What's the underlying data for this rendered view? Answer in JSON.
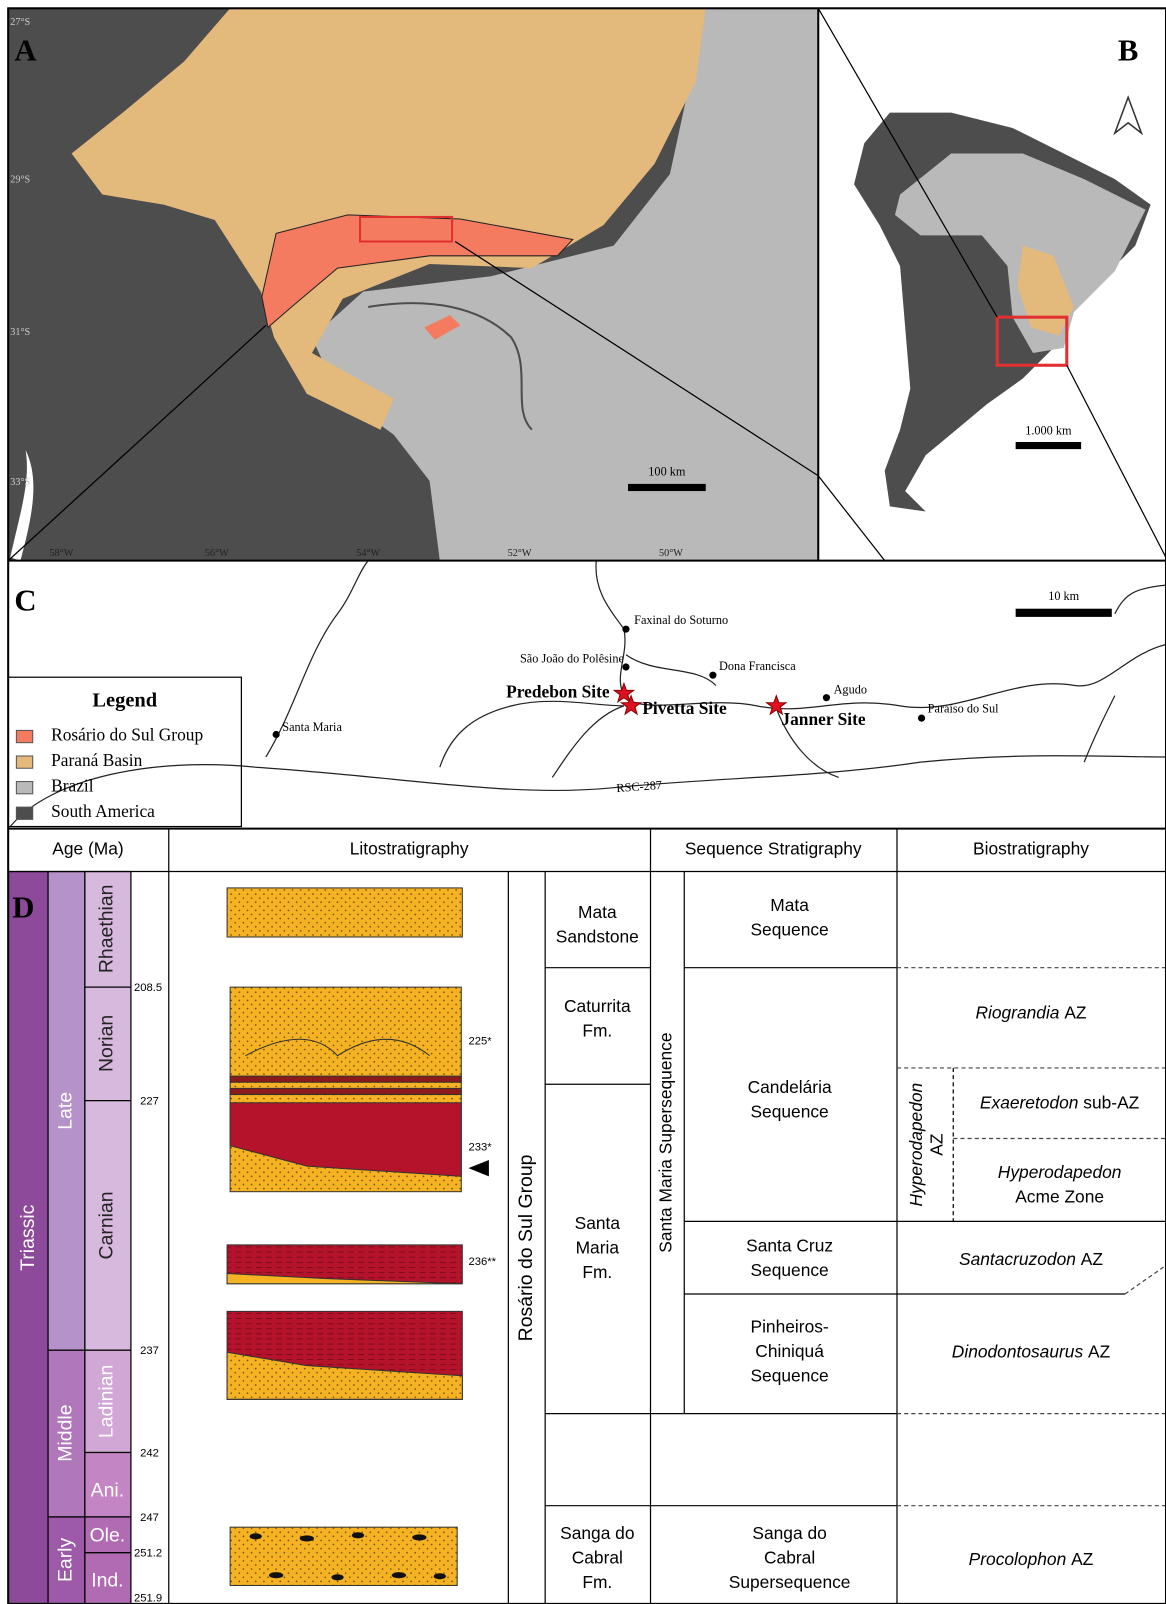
{
  "panel_a": {
    "label": "A",
    "latitudes": [
      "27°S",
      "29°S",
      "31°S",
      "33°S"
    ],
    "longitudes": [
      "58°W",
      "56°W",
      "54°W",
      "52°W",
      "50°W"
    ],
    "scale": "100 km"
  },
  "panel_b": {
    "label": "B",
    "scale": "1.000 km"
  },
  "panel_c": {
    "label": "C",
    "scale": "10 km",
    "towns": [
      "Faxinal do Soturno",
      "São João do Polêsine",
      "Dona Francisca",
      "Agudo",
      "Paraíso do Sul",
      "Santa Maria"
    ],
    "sites": [
      "Predebon Site",
      "Pivetta Site",
      "Janner Site"
    ],
    "road": "RSC-287",
    "legend": {
      "title": "Legend",
      "items": [
        "Rosário do Sul Group",
        "Paraná Basin",
        "Brazil",
        "South America"
      ]
    }
  },
  "panel_d": {
    "label": "D",
    "headers": [
      "Age (Ma)",
      "Litostratigraphy",
      "Sequence Stratigraphy",
      "Biostratigraphy"
    ],
    "period": "Triassic",
    "epochs": [
      "Late",
      "Middle",
      "Early"
    ],
    "stages": [
      "Rhaethian",
      "Norian",
      "Carnian",
      "Ladinian",
      "Ani.",
      "Ole.",
      "Ind."
    ],
    "ages": [
      "208.5",
      "227",
      "237",
      "242",
      "247",
      "251.2",
      "251.9"
    ],
    "dated_levels": [
      "225*",
      "233*",
      "236**"
    ],
    "group": "Rosário do Sul Group",
    "formations": [
      [
        "Mata",
        "Sandstone"
      ],
      [
        "Caturrita",
        "Fm."
      ],
      [
        "Santa",
        "Maria",
        "Fm."
      ],
      [
        "Sanga do",
        "Cabral",
        "Fm."
      ]
    ],
    "supersequence": "Santa Maria Supersequence",
    "sequences": [
      [
        "Mata",
        "Sequence"
      ],
      [
        "Candelária",
        "Sequence"
      ],
      [
        "Santa Cruz",
        "Sequence"
      ],
      [
        "Pinheiros-",
        "Chiniquá",
        "Sequence"
      ],
      [
        "Sanga do",
        "Cabral",
        "Supersequence"
      ]
    ],
    "biozones": [
      {
        "taxon": "Riograndia",
        "rank": "AZ"
      },
      {
        "taxon": "Hyperodapedon",
        "rank": "AZ"
      },
      {
        "taxon": "Exaeretodon",
        "rank": "sub-AZ"
      },
      {
        "taxon": "Hyperodapedon",
        "rank": "Acme Zone"
      },
      {
        "taxon": "Santacruzodon",
        "rank": "AZ"
      },
      {
        "taxon": "Dinodontosaurus",
        "rank": "AZ"
      },
      {
        "taxon": "Procolophon",
        "rank": "AZ"
      }
    ]
  }
}
